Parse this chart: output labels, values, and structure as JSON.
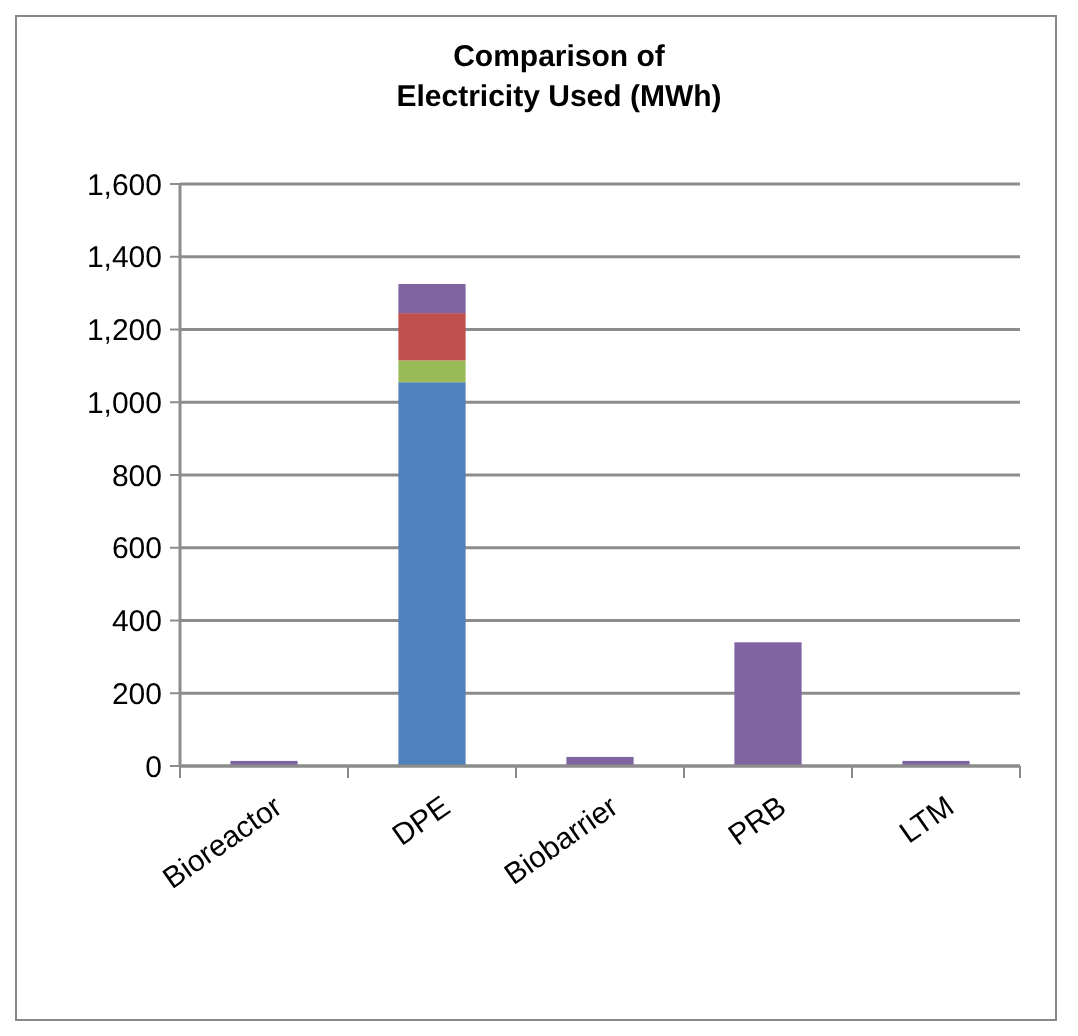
{
  "chart_data": {
    "type": "bar",
    "title": "Comparison of\nElectricity Used (MWh)",
    "categories": [
      "Bioreactor",
      "DPE",
      "Biobarrier",
      "PRB",
      "LTM"
    ],
    "stacked": true,
    "series": [
      {
        "color": "#4f81bd",
        "values": [
          0,
          1055,
          0,
          0,
          0
        ]
      },
      {
        "color": "#9bbb59",
        "values": [
          0,
          60,
          0,
          0,
          0
        ]
      },
      {
        "color": "#c0504d",
        "values": [
          0,
          130,
          0,
          0,
          0
        ]
      },
      {
        "color": "#8064a2",
        "values": [
          14,
          80,
          25,
          340,
          14
        ]
      }
    ],
    "ylim": [
      0,
      1600
    ],
    "yticks": [
      {
        "value": 0,
        "label": "0"
      },
      {
        "value": 200,
        "label": "200"
      },
      {
        "value": 400,
        "label": "400"
      },
      {
        "value": 600,
        "label": "600"
      },
      {
        "value": 800,
        "label": "800"
      },
      {
        "value": 1000,
        "label": "1,000"
      },
      {
        "value": 1200,
        "label": "1,200"
      },
      {
        "value": 1400,
        "label": "1,400"
      },
      {
        "value": 1600,
        "label": "1,600"
      }
    ],
    "grid": "y"
  }
}
